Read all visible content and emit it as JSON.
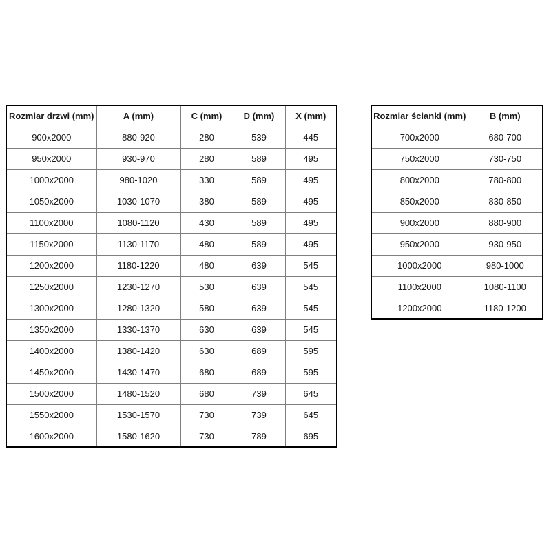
{
  "door_table": {
    "headers": [
      "Rozmiar drzwi (mm)",
      "A (mm)",
      "C (mm)",
      "D (mm)",
      "X (mm)"
    ],
    "rows": [
      [
        "900x2000",
        "880-920",
        "280",
        "539",
        "445"
      ],
      [
        "950x2000",
        "930-970",
        "280",
        "589",
        "495"
      ],
      [
        "1000x2000",
        "980-1020",
        "330",
        "589",
        "495"
      ],
      [
        "1050x2000",
        "1030-1070",
        "380",
        "589",
        "495"
      ],
      [
        "1100x2000",
        "1080-1120",
        "430",
        "589",
        "495"
      ],
      [
        "1150x2000",
        "1130-1170",
        "480",
        "589",
        "495"
      ],
      [
        "1200x2000",
        "1180-1220",
        "480",
        "639",
        "545"
      ],
      [
        "1250x2000",
        "1230-1270",
        "530",
        "639",
        "545"
      ],
      [
        "1300x2000",
        "1280-1320",
        "580",
        "639",
        "545"
      ],
      [
        "1350x2000",
        "1330-1370",
        "630",
        "639",
        "545"
      ],
      [
        "1400x2000",
        "1380-1420",
        "630",
        "689",
        "595"
      ],
      [
        "1450x2000",
        "1430-1470",
        "680",
        "689",
        "595"
      ],
      [
        "1500x2000",
        "1480-1520",
        "680",
        "739",
        "645"
      ],
      [
        "1550x2000",
        "1530-1570",
        "730",
        "739",
        "645"
      ],
      [
        "1600x2000",
        "1580-1620",
        "730",
        "789",
        "695"
      ]
    ]
  },
  "wall_table": {
    "headers": [
      "Rozmiar ścianki (mm)",
      "B (mm)"
    ],
    "rows": [
      [
        "700x2000",
        "680-700"
      ],
      [
        "750x2000",
        "730-750"
      ],
      [
        "800x2000",
        "780-800"
      ],
      [
        "850x2000",
        "830-850"
      ],
      [
        "900x2000",
        "880-900"
      ],
      [
        "950x2000",
        "930-950"
      ],
      [
        "1000x2000",
        "980-1000"
      ],
      [
        "1100x2000",
        "1080-1100"
      ],
      [
        "1200x2000",
        "1180-1200"
      ]
    ]
  },
  "colors": {
    "outer_border": "#000000",
    "inner_border": "#7f7f7f",
    "text": "#1a1a1a",
    "background": "#ffffff"
  }
}
